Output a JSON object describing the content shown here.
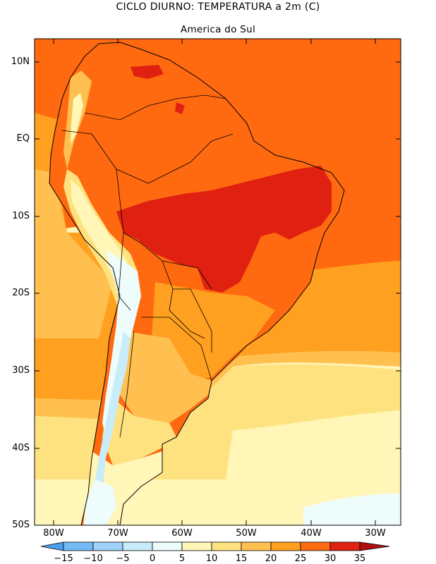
{
  "title": "CICLO DIURNO: TEMPERATURA a 2m (C)",
  "subtitle": "America do Sul",
  "map": {
    "region": "South America",
    "lon_range": [
      -85,
      -26
    ],
    "lat_range": [
      -50,
      13
    ],
    "lat_ticks": [
      {
        "value": 10,
        "label": "10N"
      },
      {
        "value": 0,
        "label": "EQ"
      },
      {
        "value": -10,
        "label": "10S"
      },
      {
        "value": -20,
        "label": "20S"
      },
      {
        "value": -30,
        "label": "30S"
      },
      {
        "value": -40,
        "label": "40S"
      },
      {
        "value": -50,
        "label": "50S"
      }
    ],
    "lon_ticks": [
      {
        "value": -80,
        "label": "80W"
      },
      {
        "value": -70,
        "label": "70W"
      },
      {
        "value": -60,
        "label": "60W"
      },
      {
        "value": -50,
        "label": "50W"
      },
      {
        "value": -40,
        "label": "40W"
      },
      {
        "value": -30,
        "label": "30W"
      }
    ]
  },
  "colorbar": {
    "levels": [
      "-15",
      "-10",
      "-5",
      "0",
      "5",
      "10",
      "15",
      "20",
      "25",
      "30",
      "35"
    ],
    "colors": [
      "#4aa0ee",
      "#74baf4",
      "#9fd2f8",
      "#c8ecfa",
      "#eefcfc",
      "#fff6b8",
      "#ffe280",
      "#ffc050",
      "#ffa020",
      "#ff6a10",
      "#e02010",
      "#b01010"
    ]
  },
  "palette": {
    "band_0_5": "#eefcfc",
    "band_5_10": "#fff6b8",
    "band_10_15": "#ffe280",
    "band_15_20": "#ffc050",
    "band_20_25": "#ffa020",
    "band_25_30": "#ff6a10",
    "band_30_35": "#e02010",
    "band_cold": "#c8ecfa"
  }
}
